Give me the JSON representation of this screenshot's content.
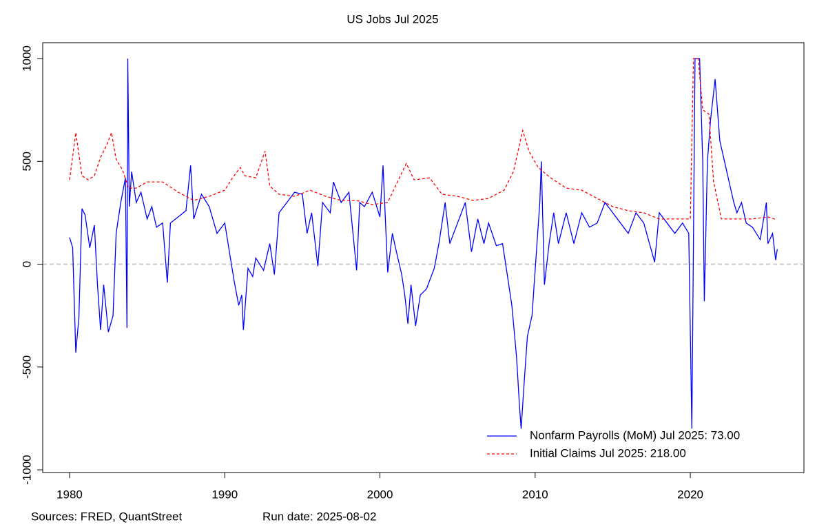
{
  "chart_data": {
    "type": "line",
    "title": "US Jobs Jul 2025",
    "footer_sources": "Sources: FRED, QuantStreet",
    "footer_run_date": "Run date: 2025-08-02",
    "xlim": [
      1978.27,
      2027.32
    ],
    "xticks": [
      1980,
      1990,
      2000,
      2010,
      2020
    ],
    "ylim": [
      -1013,
      1077
    ],
    "yticks": [
      -1000,
      -500,
      0,
      500,
      1000
    ],
    "legend": "bottom-right",
    "series": [
      {
        "name": "Nonfarm Payrolls (MoM) Jul 2025: 73.00",
        "color": "#0000ff",
        "dash": false,
        "x": [
          1980.0,
          1980.2,
          1980.4,
          1980.6,
          1980.8,
          1981.0,
          1981.3,
          1981.6,
          1981.8,
          1982.0,
          1982.2,
          1982.5,
          1982.8,
          1983.0,
          1983.3,
          1983.6,
          1983.7,
          1983.75,
          1983.85,
          1984.0,
          1984.3,
          1984.6,
          1985.0,
          1985.3,
          1985.6,
          1986.0,
          1986.3,
          1986.5,
          1987.0,
          1987.5,
          1987.8,
          1988.0,
          1988.5,
          1989.0,
          1989.5,
          1990.0,
          1990.3,
          1990.6,
          1990.9,
          1991.1,
          1991.2,
          1991.5,
          1991.8,
          1992.0,
          1992.5,
          1992.9,
          1993.2,
          1993.5,
          1994.0,
          1994.5,
          1995.0,
          1995.3,
          1995.6,
          1996.0,
          1996.3,
          1996.8,
          1997.0,
          1997.5,
          1998.0,
          1998.5,
          1998.7,
          1999.0,
          1999.5,
          2000.0,
          2000.2,
          2000.5,
          2000.8,
          2001.0,
          2001.4,
          2001.6,
          2001.8,
          2002.0,
          2002.3,
          2002.6,
          2003.0,
          2003.5,
          2003.8,
          2004.2,
          2004.5,
          2005.0,
          2005.5,
          2005.9,
          2006.3,
          2006.7,
          2007.0,
          2007.5,
          2007.9,
          2008.2,
          2008.5,
          2008.8,
          2009.0,
          2009.1,
          2009.3,
          2009.5,
          2009.8,
          2010.0,
          2010.3,
          2010.4,
          2010.6,
          2010.9,
          2011.2,
          2011.5,
          2012.0,
          2012.5,
          2013.0,
          2013.5,
          2014.0,
          2014.5,
          2015.0,
          2015.5,
          2016.0,
          2016.5,
          2017.0,
          2017.7,
          2018.0,
          2018.5,
          2019.0,
          2019.5,
          2019.9,
          2020.1,
          2020.3,
          2020.6,
          2020.8,
          2020.9,
          2021.1,
          2021.3,
          2021.6,
          2021.9,
          2022.2,
          2022.5,
          2022.8,
          2023.0,
          2023.3,
          2023.6,
          2024.0,
          2024.5,
          2024.9,
          2025.0,
          2025.3,
          2025.5,
          2025.6
        ],
        "values": [
          130,
          80,
          -430,
          -260,
          270,
          240,
          80,
          190,
          -100,
          -320,
          -100,
          -330,
          -250,
          150,
          300,
          420,
          -310,
          1000,
          280,
          450,
          300,
          350,
          220,
          280,
          180,
          200,
          -90,
          200,
          230,
          260,
          480,
          220,
          340,
          280,
          150,
          200,
          60,
          -80,
          -200,
          -150,
          -320,
          -20,
          -60,
          30,
          -30,
          100,
          -50,
          250,
          300,
          350,
          340,
          150,
          250,
          -10,
          300,
          250,
          400,
          300,
          350,
          -30,
          300,
          280,
          350,
          230,
          480,
          -40,
          150,
          80,
          -50,
          -150,
          -290,
          -100,
          -300,
          -150,
          -120,
          -20,
          100,
          300,
          100,
          200,
          300,
          60,
          220,
          100,
          200,
          90,
          100,
          -50,
          -200,
          -450,
          -700,
          -800,
          -570,
          -350,
          -250,
          -30,
          300,
          500,
          -100,
          100,
          250,
          100,
          250,
          100,
          250,
          180,
          200,
          300,
          250,
          200,
          150,
          250,
          200,
          10,
          250,
          200,
          150,
          200,
          150,
          -800,
          1000,
          1000,
          500,
          -180,
          500,
          700,
          900,
          600,
          500,
          400,
          300,
          250,
          300,
          200,
          180,
          120,
          300,
          100,
          150,
          20,
          73
        ]
      },
      {
        "name": "Initial Claims Jul 2025: 218.00",
        "color": "#ff0000",
        "dash": true,
        "x": [
          1980.0,
          1980.4,
          1980.8,
          1981.2,
          1981.6,
          1982.0,
          1982.4,
          1982.7,
          1983.0,
          1983.4,
          1983.8,
          1984.3,
          1985.0,
          1986.0,
          1987.0,
          1988.0,
          1989.0,
          1990.0,
          1990.5,
          1991.0,
          1991.3,
          1992.0,
          1992.6,
          1992.9,
          1993.5,
          1994.5,
          1995.5,
          1996.5,
          1997.5,
          1998.5,
          1999.5,
          2000.5,
          2001.0,
          2001.7,
          2002.2,
          2003.2,
          2004.0,
          2005.0,
          2006.0,
          2007.0,
          2008.0,
          2008.6,
          2009.2,
          2009.6,
          2010.2,
          2011.0,
          2012.0,
          2013.0,
          2014.0,
          2015.0,
          2016.0,
          2017.0,
          2018.0,
          2019.0,
          2020.0,
          2020.2,
          2020.5,
          2020.8,
          2021.2,
          2021.5,
          2022.0,
          2023.0,
          2024.0,
          2025.0,
          2025.5
        ],
        "values": [
          410,
          640,
          430,
          410,
          430,
          520,
          580,
          640,
          510,
          460,
          370,
          370,
          400,
          400,
          350,
          310,
          330,
          360,
          420,
          470,
          430,
          420,
          550,
          380,
          340,
          330,
          360,
          330,
          310,
          310,
          290,
          300,
          380,
          490,
          410,
          420,
          340,
          330,
          310,
          320,
          360,
          450,
          650,
          550,
          470,
          420,
          370,
          360,
          320,
          280,
          260,
          250,
          220,
          220,
          220,
          1000,
          1000,
          750,
          730,
          400,
          220,
          220,
          220,
          230,
          218
        ]
      }
    ]
  }
}
